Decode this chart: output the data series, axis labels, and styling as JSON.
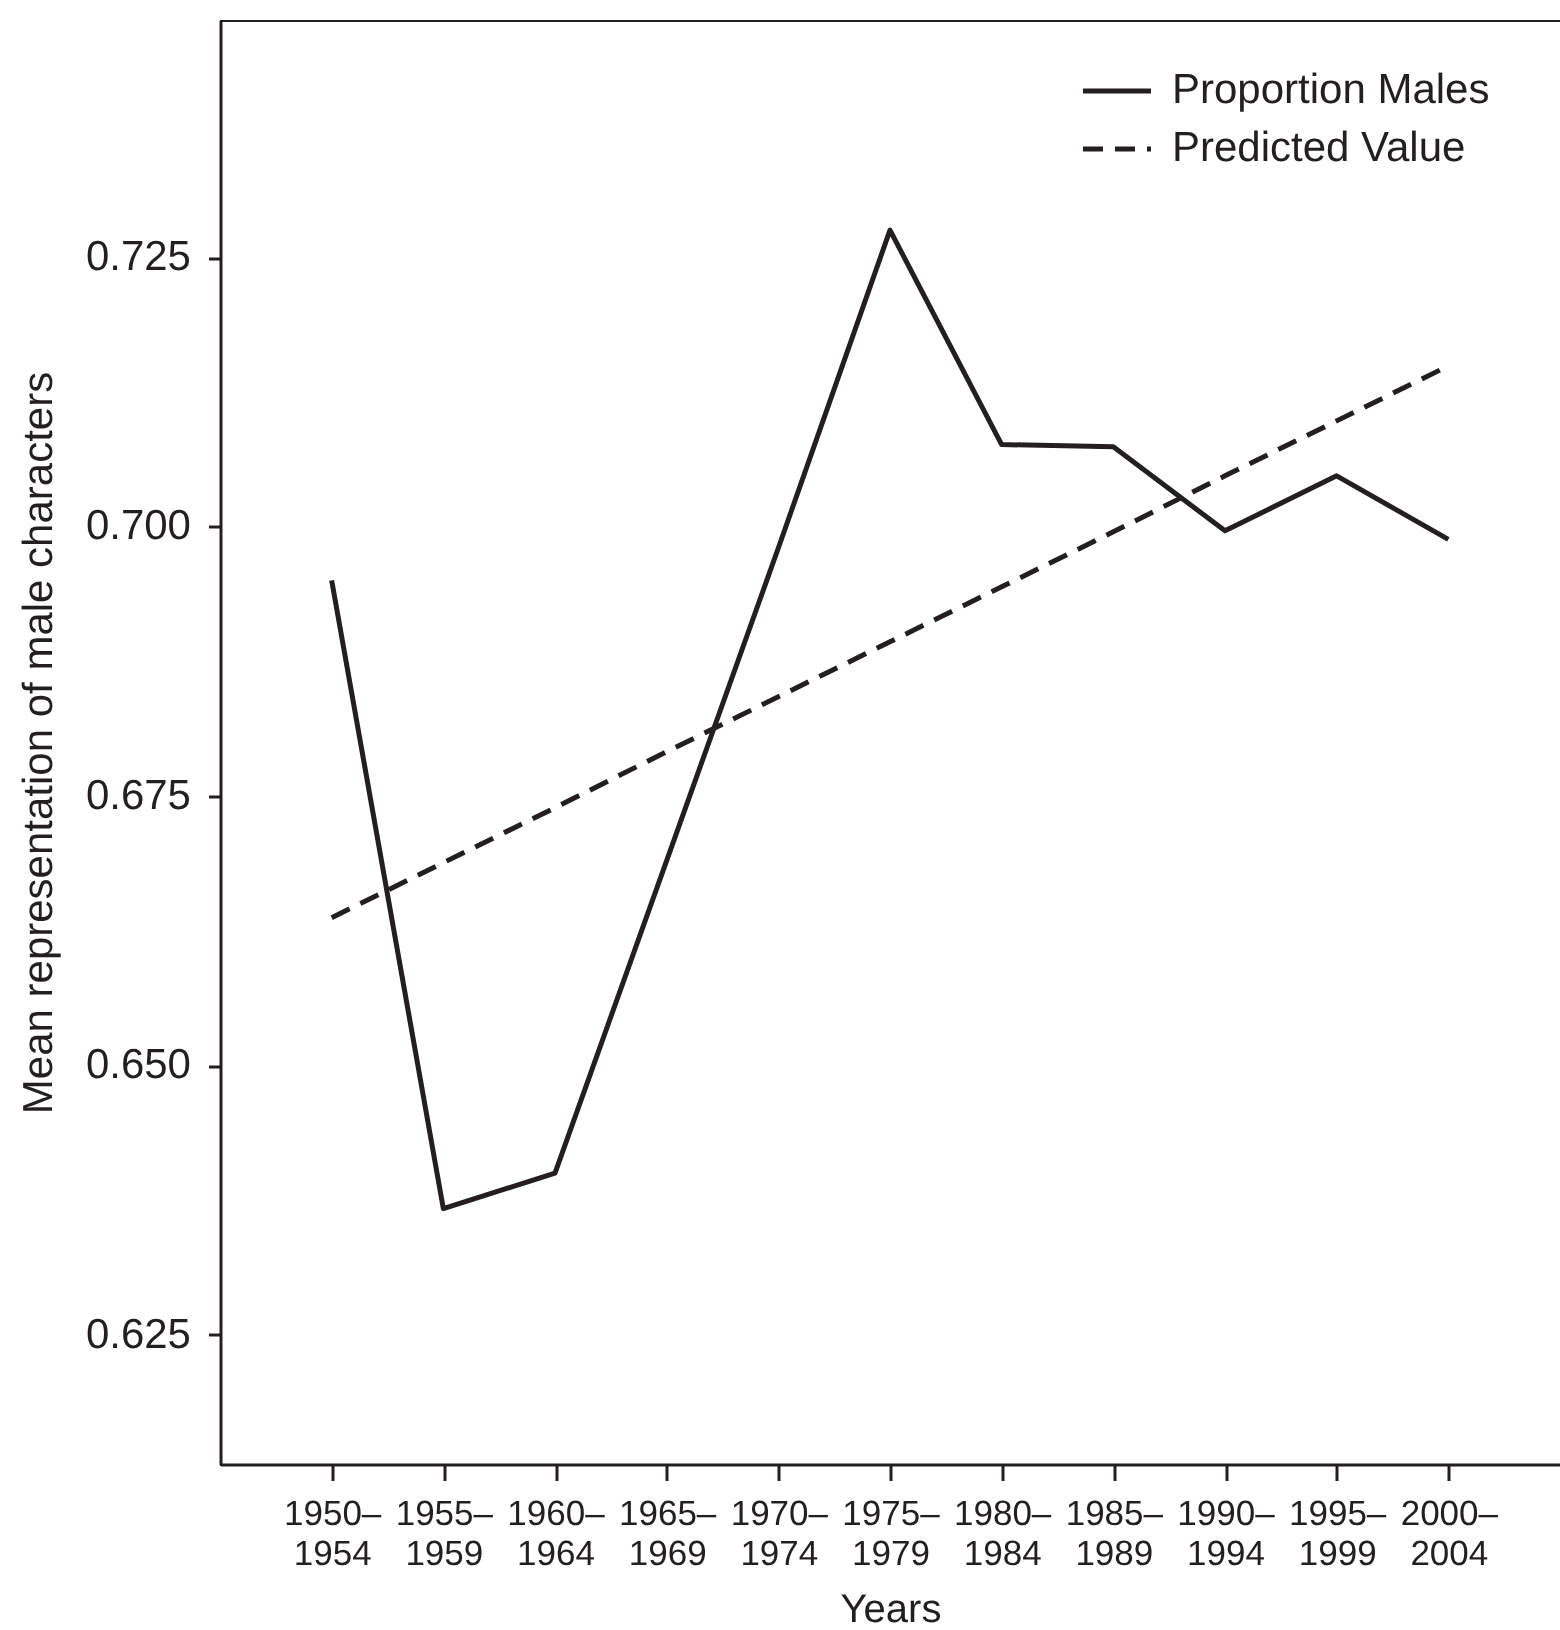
{
  "chart_data": {
    "type": "line",
    "xlabel": "Years",
    "ylabel": "Mean representation of male characters",
    "categories": [
      "1950–\n1954",
      "1955–\n1959",
      "1960–\n1964",
      "1965–\n1969",
      "1970–\n1974",
      "1975–\n1979",
      "1980–\n1984",
      "1985–\n1989",
      "1990–\n1994",
      "1995–\n1999",
      "2000–\n2004"
    ],
    "series": [
      {
        "name": "Proportion Males",
        "color": "#231f20",
        "line_style": "solid",
        "values": [
          0.695,
          0.6367,
          0.64,
          0.669,
          0.698,
          0.7275,
          0.7076,
          0.7074,
          0.6996,
          0.7047,
          0.6988
        ]
      },
      {
        "name": "Predicted Value",
        "color": "#231f20",
        "line_style": "dashed",
        "values": [
          0.6637,
          0.6688,
          0.6739,
          0.6791,
          0.6842,
          0.6893,
          0.6944,
          0.6995,
          0.7047,
          0.7098,
          0.7149
        ]
      }
    ],
    "ylim": [
      0.613,
      0.747
    ],
    "yticks": [
      0.625,
      {
        "value": 0.65,
        "label": "0.650"
      },
      0.675,
      {
        "value": 0.7,
        "label": "0.700"
      },
      0.725
    ],
    "legend": "top right"
  }
}
